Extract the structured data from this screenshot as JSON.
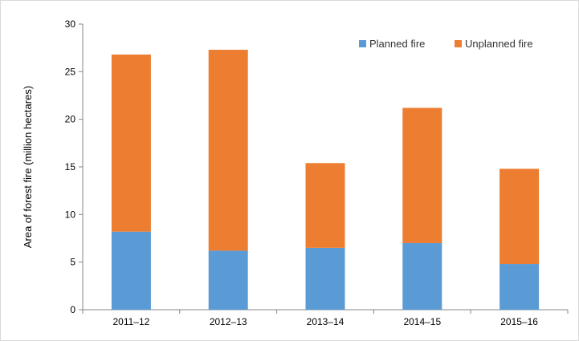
{
  "chart_data": {
    "type": "bar",
    "stacked": true,
    "categories": [
      "2011–12",
      "2012–13",
      "2013–14",
      "2014–15",
      "2015–16"
    ],
    "series": [
      {
        "name": "Planned fire",
        "values": [
          8.2,
          6.2,
          6.5,
          7.0,
          4.8
        ],
        "color": "#5b9bd5"
      },
      {
        "name": "Unplanned fire",
        "values": [
          18.6,
          21.1,
          8.9,
          14.2,
          10.0
        ],
        "color": "#ed7d31"
      }
    ],
    "ylabel": "Area of forest fire (million hectares)",
    "xlabel": "",
    "ylim": [
      0,
      30
    ],
    "yticks": [
      0,
      5,
      10,
      15,
      20,
      25,
      30
    ],
    "grid": false,
    "legend": "top-right"
  }
}
